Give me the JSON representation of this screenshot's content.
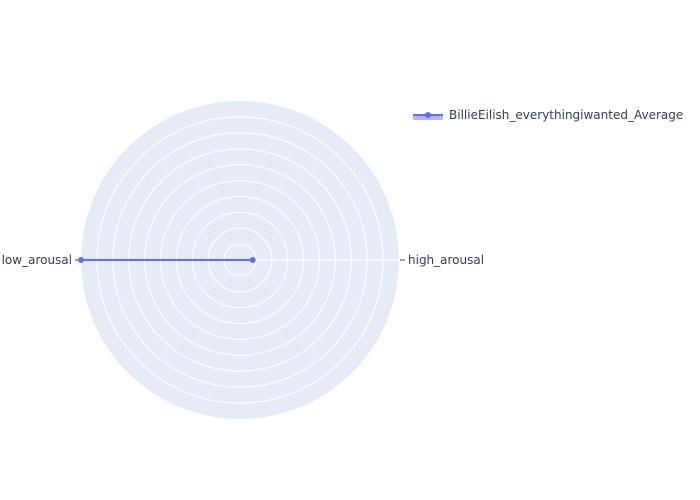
{
  "chart_data": {
    "type": "radar",
    "axes": [
      "high_arousal",
      "low_arousal"
    ],
    "series": [
      {
        "name": "BillieEilish_everythingiwanted_Average",
        "values": [
          0.08,
          1.0
        ],
        "color": "#636efa"
      }
    ],
    "radial_range": [
      0,
      1
    ],
    "grid": true,
    "legend_position": "top-right",
    "background_color": "#e5ecf6",
    "grid_color": "#ffffff"
  }
}
